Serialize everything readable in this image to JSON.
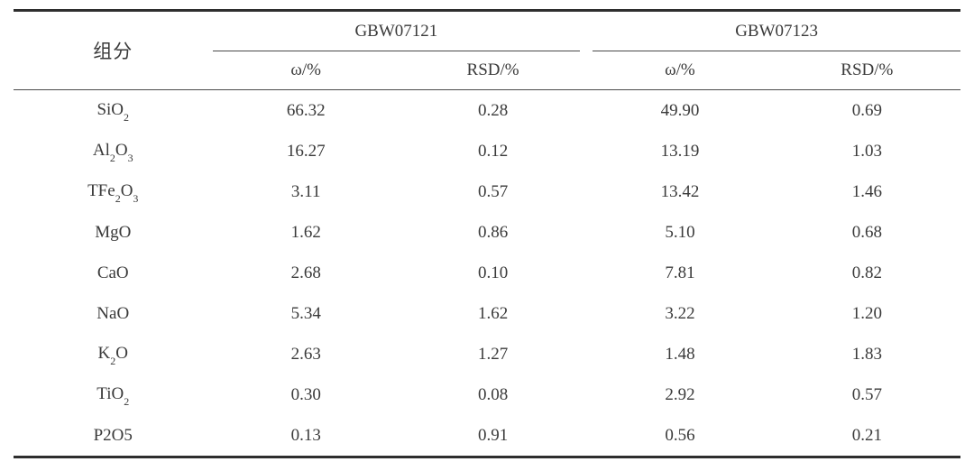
{
  "table": {
    "component_header": "组分",
    "groups": [
      {
        "name": "GBW07121",
        "subcolumns": [
          "ω/%",
          "RSD/%"
        ]
      },
      {
        "name": "GBW07123",
        "subcolumns": [
          "ω/%",
          "RSD/%"
        ]
      }
    ],
    "rows": [
      {
        "component": "SiO2",
        "formula": [
          {
            "t": "SiO"
          },
          {
            "sub": "2"
          }
        ],
        "values": [
          "66.32",
          "0.28",
          "49.90",
          "0.69"
        ]
      },
      {
        "component": "Al2O3",
        "formula": [
          {
            "t": "Al"
          },
          {
            "sub": "2"
          },
          {
            "t": "O"
          },
          {
            "sub": "3"
          }
        ],
        "values": [
          "16.27",
          "0.12",
          "13.19",
          "1.03"
        ]
      },
      {
        "component": "TFe2O3",
        "formula": [
          {
            "t": "TFe"
          },
          {
            "sub": "2"
          },
          {
            "t": "O"
          },
          {
            "sub": "3"
          }
        ],
        "values": [
          "3.11",
          "0.57",
          "13.42",
          "1.46"
        ]
      },
      {
        "component": "MgO",
        "formula": [
          {
            "t": "MgO"
          }
        ],
        "values": [
          "1.62",
          "0.86",
          "5.10",
          "0.68"
        ]
      },
      {
        "component": "CaO",
        "formula": [
          {
            "t": "CaO"
          }
        ],
        "values": [
          "2.68",
          "0.10",
          "7.81",
          "0.82"
        ]
      },
      {
        "component": "NaO",
        "formula": [
          {
            "t": "NaO"
          }
        ],
        "values": [
          "5.34",
          "1.62",
          "3.22",
          "1.20"
        ]
      },
      {
        "component": "K2O",
        "formula": [
          {
            "t": "K"
          },
          {
            "sub": "2"
          },
          {
            "t": "O"
          }
        ],
        "values": [
          "2.63",
          "1.27",
          "1.48",
          "1.83"
        ]
      },
      {
        "component": "TiO2",
        "formula": [
          {
            "t": "TiO"
          },
          {
            "sub": "2"
          }
        ],
        "values": [
          "0.30",
          "0.08",
          "2.92",
          "0.57"
        ]
      },
      {
        "component": "P2O5",
        "formula": [
          {
            "t": "P2O5"
          }
        ],
        "values": [
          "0.13",
          "0.91",
          "0.56",
          "0.21"
        ]
      }
    ],
    "colors": {
      "rule_thick": "#2e2e2e",
      "rule_thin": "#4a4a4a",
      "text": "#3a3a3a",
      "background": "#ffffff"
    }
  }
}
